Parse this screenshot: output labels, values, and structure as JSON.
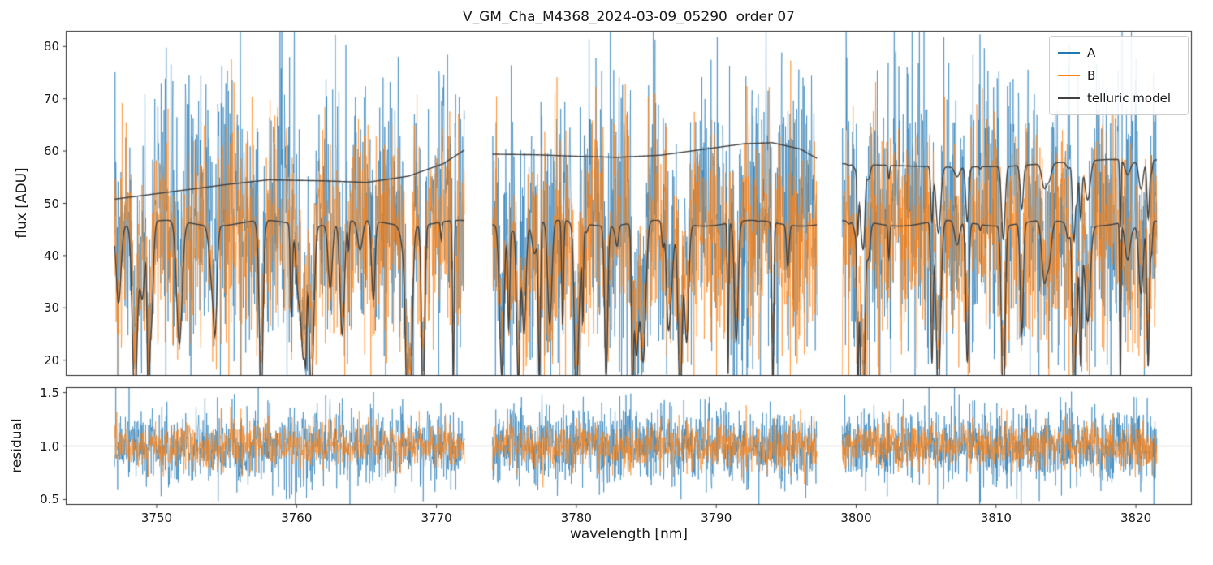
{
  "chart_data": {
    "type": "line",
    "title": "V_GM_Cha_M4368_2024-03-09_05290  order 07",
    "xlabel": "wavelength [nm]",
    "xlim": [
      3743.5,
      3824
    ],
    "xticks": [
      3750,
      3760,
      3770,
      3780,
      3790,
      3800,
      3810,
      3820
    ],
    "xtick_labels": [
      "3750",
      "3760",
      "3770",
      "3780",
      "3790",
      "3800",
      "3810",
      "3820"
    ],
    "segments": [
      [
        3747.0,
        3772.0
      ],
      [
        3774.0,
        3797.2
      ],
      [
        3799.0,
        3821.5
      ]
    ],
    "grid": false,
    "legend": {
      "position": "upper right",
      "entries": [
        {
          "label": "A",
          "color": "#1f77b4"
        },
        {
          "label": "B",
          "color": "#ff7f0e"
        },
        {
          "label": "telluric model",
          "color": "#404040"
        }
      ]
    },
    "panels": [
      {
        "name": "flux",
        "ylabel": "flux [ADU]",
        "ylim": [
          17,
          83
        ],
        "yticks": [
          20,
          30,
          40,
          50,
          60,
          70,
          80
        ],
        "ytick_labels": [
          "20",
          "30",
          "40",
          "50",
          "60",
          "70",
          "80"
        ],
        "series": [
          {
            "name": "A",
            "color": "#1f77b4",
            "kind": "noisy-spectrum",
            "mean": 49,
            "std": 14
          },
          {
            "name": "B",
            "color": "#ff7f0e",
            "kind": "noisy-spectrum",
            "mean": 45.5,
            "std": 10.5
          },
          {
            "name": "telluric model",
            "color": "#404040",
            "kind": "model",
            "absorption_baseline": 46.2,
            "upper_dip_strength": 0.32,
            "continuum": [
              [
                [
                  3747,
                  50.8
                ],
                [
                  3751,
                  52.2
                ],
                [
                  3755,
                  53.6
                ],
                [
                  3758,
                  54.5
                ],
                [
                  3762,
                  54.3
                ],
                [
                  3765,
                  54.0
                ],
                [
                  3768,
                  55.2
                ],
                [
                  3770.5,
                  57.6
                ],
                [
                  3772,
                  60.2
                ]
              ],
              [
                [
                  3774,
                  59.4
                ],
                [
                  3777,
                  59.3
                ],
                [
                  3780,
                  59.0
                ],
                [
                  3783,
                  58.8
                ],
                [
                  3786,
                  59.2
                ],
                [
                  3789,
                  60.3
                ],
                [
                  3792,
                  61.4
                ],
                [
                  3794,
                  61.6
                ],
                [
                  3796,
                  60.4
                ],
                [
                  3797.2,
                  58.6
                ]
              ],
              [
                [
                  3799,
                  57.6
                ],
                [
                  3803,
                  57.2
                ],
                [
                  3807,
                  56.9
                ],
                [
                  3811,
                  57.1
                ],
                [
                  3815,
                  57.9
                ],
                [
                  3818,
                  58.4
                ],
                [
                  3821.5,
                  58.3
                ]
              ]
            ]
          }
        ]
      },
      {
        "name": "residual",
        "ylabel": "residual",
        "ylim": [
          0.45,
          1.55
        ],
        "yticks": [
          0.5,
          1.0,
          1.5
        ],
        "ytick_labels": [
          "0.5",
          "1.0",
          "1.5"
        ],
        "hline": 1.0,
        "series": [
          {
            "name": "A",
            "color": "#1f77b4",
            "kind": "noisy-residual",
            "mean": 1.0,
            "std": 0.18
          },
          {
            "name": "B",
            "color": "#ff7f0e",
            "kind": "noisy-residual",
            "mean": 1.0,
            "std": 0.11
          }
        ]
      }
    ]
  }
}
